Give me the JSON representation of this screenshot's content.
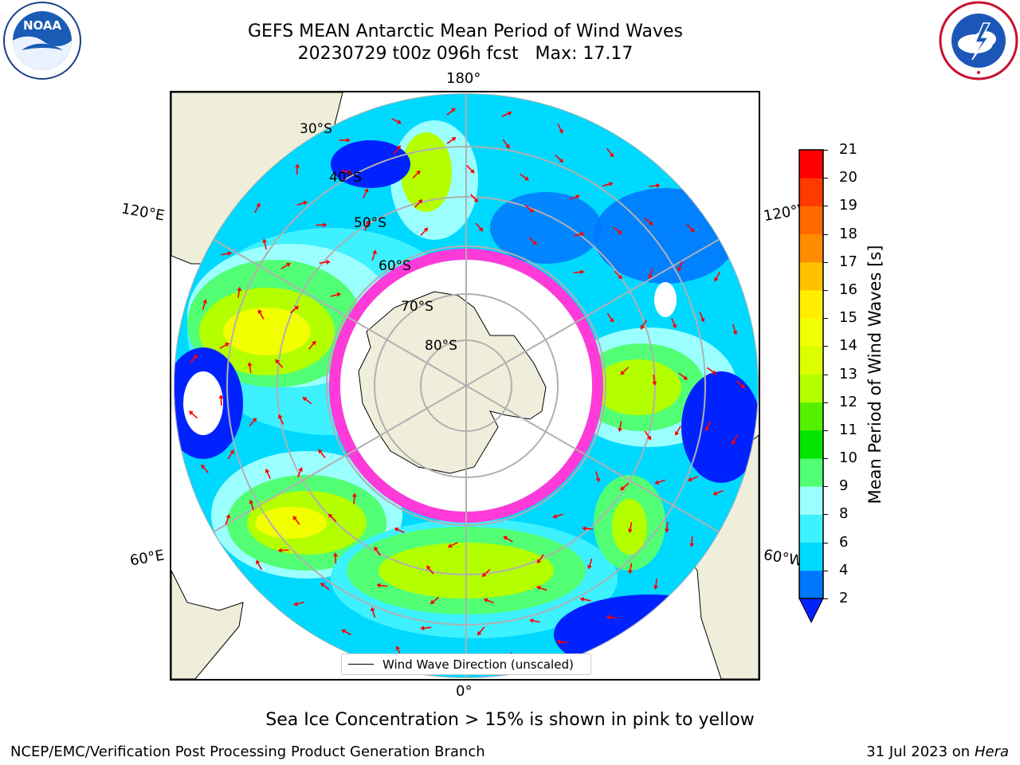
{
  "header": {
    "title_line1": "GEFS MEAN Antarctic Mean Period of Wind Waves",
    "title_line2": "20230729 t00z 096h fcst   Max: 17.17"
  },
  "logos": {
    "noaa": {
      "text": "NOAA",
      "ring_text": "NATIONAL OCEANIC AND ATMOSPHERIC ADMINISTRATION · U.S. DEPARTMENT OF COMMERCE"
    },
    "nws": {
      "ring_text": "NATIONAL WEATHER SERVICE"
    }
  },
  "map": {
    "projection": "south-polar stereographic",
    "longitude_labels": [
      "180°",
      "120°E",
      "120°W",
      "60°E",
      "60°W",
      "0°"
    ],
    "latitude_labels": [
      "30°S",
      "40°S",
      "50°S",
      "60°S",
      "70°S",
      "80°S"
    ],
    "legend": {
      "label": "Wind Wave Direction (unscaled)"
    },
    "colors": {
      "land": "#efeedb",
      "grid": "#b0b0b0",
      "arrows": "#ff0000",
      "sea_ice": "#ff3ad8",
      "no_data": "#ffffff"
    }
  },
  "colorbar": {
    "label": "Mean Period of Wind Waves [s]",
    "ticks": [
      "2",
      "4",
      "6",
      "8",
      "9",
      "10",
      "11",
      "12",
      "13",
      "14",
      "15",
      "16",
      "17",
      "18",
      "19",
      "20",
      "21"
    ],
    "colors": [
      "#0077ff",
      "#00d9ff",
      "#3df1ff",
      "#9cffff",
      "#52ff74",
      "#00e600",
      "#55f000",
      "#b3ff00",
      "#dcff00",
      "#f1ff00",
      "#ffee00",
      "#ffc000",
      "#ff8c00",
      "#ff6a00",
      "#ff3a00",
      "#ff0000"
    ],
    "extend_min_color": "#0022ff"
  },
  "subtitle": "Sea Ice Concentration > 15% is shown in pink to yellow",
  "footer": {
    "left": "NCEP/EMC/Verification Post Processing Product Generation Branch",
    "date": "31 Jul 2023 on",
    "machine": "Hera"
  }
}
